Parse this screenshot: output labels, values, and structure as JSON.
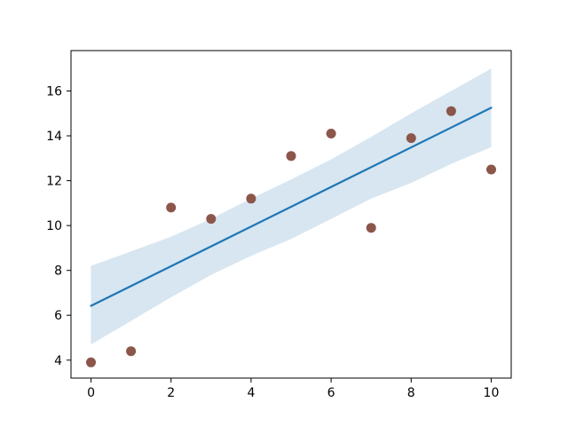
{
  "chart_data": {
    "type": "scatter",
    "title": "",
    "xlabel": "",
    "ylabel": "",
    "grid": false,
    "legend": null,
    "x": [
      0,
      1,
      2,
      3,
      4,
      5,
      6,
      7,
      8,
      9,
      10
    ],
    "y": [
      3.9,
      4.4,
      10.8,
      10.3,
      11.2,
      13.1,
      14.1,
      9.9,
      13.9,
      15.1,
      12.5
    ],
    "regression_line": {
      "x": [
        0,
        10
      ],
      "y": [
        6.42,
        15.25
      ]
    },
    "ci_band": {
      "x": [
        0,
        1,
        2,
        3,
        4,
        5,
        6,
        7,
        8,
        9,
        10
      ],
      "upper": [
        8.2,
        8.85,
        9.5,
        10.3,
        11.2,
        12.05,
        12.95,
        13.95,
        15.0,
        16.0,
        17.0
      ],
      "lower": [
        4.7,
        5.75,
        6.8,
        7.8,
        8.65,
        9.4,
        10.3,
        11.2,
        11.9,
        12.75,
        13.5
      ]
    },
    "xticks": [
      0,
      2,
      4,
      6,
      8,
      10
    ],
    "yticks": [
      4,
      6,
      8,
      10,
      12,
      14,
      16
    ],
    "xtick_labels": [
      "0",
      "2",
      "4",
      "6",
      "8",
      "10"
    ],
    "ytick_labels": [
      "4",
      "6",
      "8",
      "10",
      "12",
      "14",
      "16"
    ],
    "xlim": [
      -0.5,
      10.5
    ],
    "ylim": [
      3.2,
      17.8
    ],
    "marker_radius_px": 5.5,
    "colors": {
      "scatter": "#8c564b",
      "line": "#1f77b4",
      "band": "rgba(31,119,180,0.18)",
      "frame": "#000000",
      "tick_label": "#000000",
      "background": "#ffffff"
    }
  }
}
